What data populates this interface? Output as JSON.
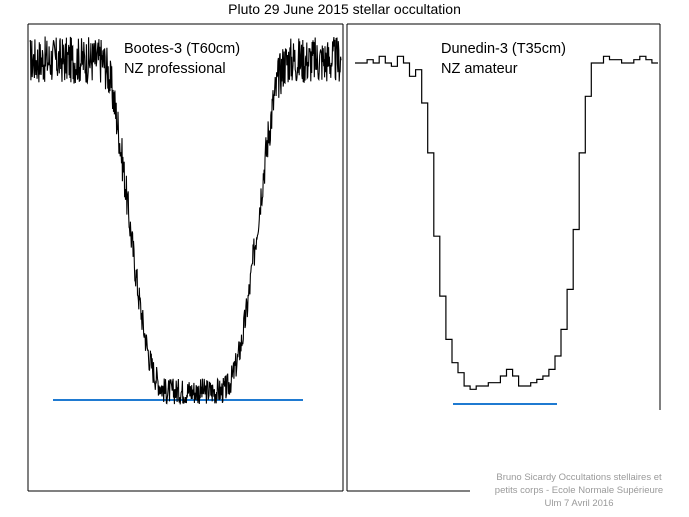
{
  "title": "Pluto 29 June 2015 stellar occultation",
  "footer": {
    "line1": "Bruno Sicardy   Occultations stellaires et",
    "line2": "petits corps - Ecole Normale Supérieure",
    "line3": "Ulm   7 Avril 2016"
  },
  "colors": {
    "trace": "#000000",
    "baseline": "#1f7ad1",
    "frame": "#000000"
  },
  "chart_data": [
    {
      "type": "line",
      "title": "",
      "labels": [
        "Bootes-3 (T60cm)",
        "NZ professional"
      ],
      "xlabel": "",
      "ylabel": "",
      "x": [
        0,
        1,
        2,
        3,
        4,
        5,
        6,
        7,
        8,
        9,
        10,
        11,
        12,
        13,
        14,
        15,
        16,
        17,
        18,
        19,
        20,
        21,
        22,
        23,
        24,
        25,
        26,
        27,
        28,
        29,
        30,
        31,
        32,
        33,
        34,
        35,
        36,
        37,
        38,
        39,
        40,
        41,
        42,
        43,
        44,
        45,
        46,
        47,
        48,
        49,
        50,
        51,
        52,
        53,
        54,
        55,
        56,
        57,
        58,
        59,
        60
      ],
      "series": [
        {
          "values": [
            1.0,
            1.0,
            1.0,
            1.0,
            1.0,
            1.0,
            1.0,
            1.0,
            1.0,
            1.0,
            1.0,
            1.0,
            1.0,
            1.0,
            1.0,
            0.97,
            0.9,
            0.8,
            0.68,
            0.55,
            0.42,
            0.3,
            0.2,
            0.12,
            0.07,
            0.04,
            0.02,
            0.02,
            0.02,
            0.02,
            0.02,
            0.02,
            0.02,
            0.02,
            0.02,
            0.02,
            0.02,
            0.02,
            0.03,
            0.06,
            0.11,
            0.18,
            0.28,
            0.4,
            0.53,
            0.66,
            0.78,
            0.88,
            0.95,
            0.99,
            1.0,
            1.0,
            1.0,
            1.0,
            1.0,
            1.0,
            1.0,
            1.0,
            1.0,
            1.0,
            1.0
          ]
        }
      ],
      "baseline": 0,
      "noise": 0.07,
      "ylim": [
        0,
        1.1
      ],
      "grid": false
    },
    {
      "type": "line",
      "title": "",
      "labels": [
        "Dunedin-3 (T35cm)",
        "NZ amateur"
      ],
      "xlabel": "",
      "ylabel": "",
      "step": true,
      "x": [
        0,
        1,
        2,
        3,
        4,
        5,
        6,
        7,
        8,
        9,
        10,
        11,
        12,
        13,
        14,
        15,
        16,
        17,
        18,
        19,
        20,
        21,
        22,
        23,
        24,
        25,
        26,
        27,
        28,
        29,
        30,
        31,
        32,
        33,
        34,
        35,
        36,
        37,
        38,
        39,
        40,
        41,
        42,
        43,
        44,
        45,
        46,
        47,
        48,
        49
      ],
      "series": [
        {
          "values": [
            1.0,
            1.0,
            1.01,
            1.0,
            1.02,
            1.0,
            0.99,
            1.02,
            1.0,
            0.96,
            0.98,
            0.88,
            0.73,
            0.48,
            0.3,
            0.17,
            0.1,
            0.07,
            0.03,
            0.02,
            0.03,
            0.03,
            0.04,
            0.04,
            0.06,
            0.08,
            0.06,
            0.03,
            0.03,
            0.04,
            0.05,
            0.06,
            0.08,
            0.12,
            0.2,
            0.32,
            0.5,
            0.73,
            0.9,
            1.0,
            1.0,
            1.02,
            1.01,
            1.01,
            1.0,
            1.0,
            1.01,
            1.02,
            1.01,
            1.0
          ]
        }
      ],
      "baseline": 0,
      "ylim": [
        0,
        1.1
      ],
      "grid": false
    }
  ]
}
